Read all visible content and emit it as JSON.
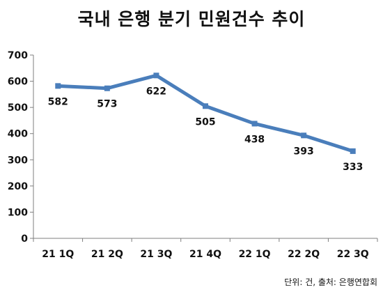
{
  "chart_data": {
    "type": "line",
    "title": "국내 은행 분기 민원건수 추이",
    "categories": [
      "21 1Q",
      "21 2Q",
      "21 3Q",
      "21 4Q",
      "22 1Q",
      "22 2Q",
      "22 3Q"
    ],
    "series": [
      {
        "values": [
          582,
          573,
          622,
          505,
          438,
          393,
          333
        ]
      }
    ],
    "ylim": [
      0,
      700
    ],
    "yticks": [
      "0",
      "100",
      "200",
      "300",
      "400",
      "500",
      "600",
      "700"
    ],
    "grid": false,
    "legend": "none",
    "line_color": "#4a7ebb",
    "source_note": "단위: 건, 출처: 은행연합회"
  }
}
